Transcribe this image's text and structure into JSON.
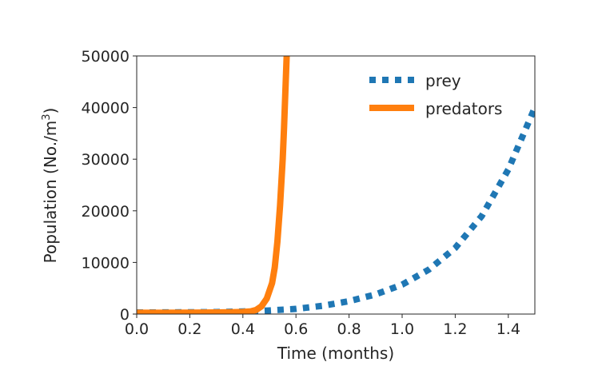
{
  "chart_data": {
    "type": "line",
    "xlabel": "Time (months)",
    "ylabel_base": "Population (No./m",
    "ylabel_sup": "3",
    "ylabel_end": ")",
    "xlim": [
      0.0,
      1.5
    ],
    "ylim": [
      0,
      50000
    ],
    "xticks": [
      0.0,
      0.2,
      0.4,
      0.6,
      0.8,
      1.0,
      1.2,
      1.4
    ],
    "xtick_labels": [
      "0.0",
      "0.2",
      "0.4",
      "0.6",
      "0.8",
      "1.0",
      "1.2",
      "1.4"
    ],
    "yticks": [
      0,
      10000,
      20000,
      30000,
      40000,
      50000
    ],
    "ytick_labels": [
      "0",
      "10000",
      "20000",
      "30000",
      "40000",
      "50000"
    ],
    "grid": false,
    "legend_position": "top-right",
    "series": [
      {
        "name": "prey",
        "style": "dotted",
        "color": "#1f77b4",
        "x": [
          0.0,
          0.1,
          0.2,
          0.3,
          0.4,
          0.5,
          0.6,
          0.7,
          0.8,
          0.9,
          1.0,
          1.1,
          1.2,
          1.3,
          1.4,
          1.5
        ],
        "y": [
          300,
          320,
          350,
          390,
          500,
          700,
          1000,
          1600,
          2500,
          3800,
          5700,
          8600,
          12800,
          19000,
          28000,
          40000
        ]
      },
      {
        "name": "predators",
        "style": "solid",
        "color": "#ff7f0e",
        "x": [
          0.0,
          0.1,
          0.2,
          0.3,
          0.35,
          0.4,
          0.43,
          0.45,
          0.47,
          0.49,
          0.51,
          0.52,
          0.53,
          0.54,
          0.55,
          0.555,
          0.56,
          0.565,
          0.57
        ],
        "y": [
          250,
          260,
          270,
          300,
          340,
          400,
          520,
          800,
          1500,
          3000,
          6000,
          9000,
          14000,
          21000,
          30000,
          36000,
          43000,
          50000,
          55000
        ]
      }
    ]
  }
}
